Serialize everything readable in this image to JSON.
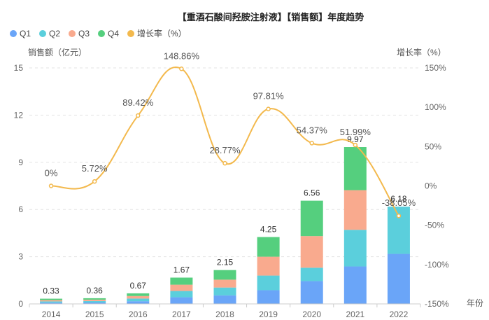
{
  "chart_data": {
    "type": "bar",
    "stacked": true,
    "title": "【重酒石酸间羟胺注射液】【销售额】年度趋势",
    "xlabel": "年份",
    "ylabel": "销售额（亿元）",
    "y2label": "增长率（%）",
    "ylim": [
      0,
      15
    ],
    "yticks": [
      0,
      3,
      6,
      9,
      12,
      15
    ],
    "y2lim": [
      -150,
      150
    ],
    "y2ticks": [
      "-150%",
      "-100%",
      "-50%",
      "0%",
      "50%",
      "100%",
      "150%"
    ],
    "categories": [
      "2014",
      "2015",
      "2016",
      "2017",
      "2018",
      "2019",
      "2020",
      "2021",
      "2022"
    ],
    "series": [
      {
        "name": "Q1",
        "color": "#6aa5f8",
        "values": [
          0.08,
          0.09,
          0.17,
          0.42,
          0.54,
          0.87,
          1.45,
          2.38,
          3.18
        ]
      },
      {
        "name": "Q2",
        "color": "#5bcfdc",
        "values": [
          0.08,
          0.09,
          0.17,
          0.4,
          0.5,
          0.93,
          0.85,
          2.33,
          3.0
        ]
      },
      {
        "name": "Q3",
        "color": "#f9aa8e",
        "values": [
          0.08,
          0.09,
          0.16,
          0.4,
          0.5,
          1.2,
          2.01,
          2.52,
          0
        ]
      },
      {
        "name": "Q4",
        "color": "#55cf7e",
        "values": [
          0.09,
          0.09,
          0.17,
          0.45,
          0.61,
          1.25,
          2.25,
          2.74,
          0
        ]
      }
    ],
    "totals": [
      "0.33",
      "0.36",
      "0.67",
      "1.67",
      "2.15",
      "4.25",
      "6.56",
      "9.97",
      "6.18"
    ],
    "growth": {
      "name": "增长率（%）",
      "color": "#f3b94d",
      "values": [
        0,
        5.72,
        89.42,
        148.86,
        28.77,
        97.81,
        54.37,
        51.99,
        -38.05
      ],
      "labels": [
        "0%",
        "5.72%",
        "89.42%",
        "148.86%",
        "28.77%",
        "97.81%",
        "54.37%",
        "51.99%",
        "-38.05%"
      ]
    },
    "legend": [
      "Q1",
      "Q2",
      "Q3",
      "Q4",
      "增长率（%）"
    ]
  }
}
